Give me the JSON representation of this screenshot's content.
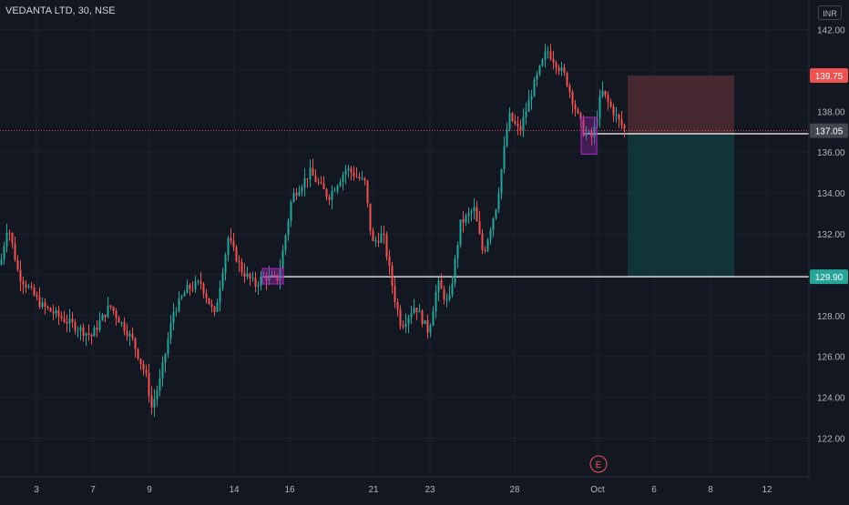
{
  "header": {
    "symbol_title": "VEDANTA LTD, 30, NSE",
    "currency": "INR"
  },
  "colors": {
    "background": "#131722",
    "grid": "#1e222d",
    "up": "#26a69a",
    "down": "#ef5350",
    "axis_text": "#b2b5be",
    "stop_zone": "#4e2a31",
    "target_zone": "#12393a",
    "marker_box": "#9c27b0"
  },
  "chart_data": {
    "type": "candlestick",
    "title": "VEDANTA LTD, 30, NSE",
    "y_axis": {
      "side": "right",
      "min": 121.0,
      "max": 143.0,
      "ticks": [
        122.0,
        124.0,
        126.0,
        128.0,
        130.0,
        132.0,
        134.0,
        136.0,
        138.0,
        140.0,
        142.0
      ],
      "tick_labels": [
        "122.00",
        "124.00",
        "126.00",
        "128.00",
        "130.00",
        "132.00",
        "134.00",
        "136.00",
        "138.00",
        "",
        "142.00"
      ]
    },
    "x_axis": {
      "labels": [
        "3",
        "7",
        "9",
        "14",
        "16",
        "21",
        "23",
        "28",
        "Oct",
        "6",
        "8",
        "12"
      ]
    },
    "grid": true,
    "price_labels": [
      {
        "value": 139.75,
        "text": "139.75",
        "color": "#ef5350"
      },
      {
        "value": 137.05,
        "text": "137.05",
        "color": "#434651"
      },
      {
        "value": 129.9,
        "text": "129.90",
        "color": "#26a69a"
      }
    ],
    "horizontal_lines": [
      129.9,
      136.9
    ],
    "current_price_line": 137.05,
    "position": {
      "entry": 136.9,
      "stop": 139.75,
      "target": 129.9
    },
    "earnings_marker": "E",
    "price_path_key_points": [
      [
        0,
        130.5
      ],
      [
        8,
        132.5
      ],
      [
        20,
        130.0
      ],
      [
        45,
        128.5
      ],
      [
        70,
        127.8
      ],
      [
        100,
        127.0
      ],
      [
        120,
        128.5
      ],
      [
        145,
        126.8
      ],
      [
        160,
        125.0
      ],
      [
        166,
        123.5
      ],
      [
        175,
        124.8
      ],
      [
        190,
        128.2
      ],
      [
        205,
        129.3
      ],
      [
        220,
        129.6
      ],
      [
        235,
        128.0
      ],
      [
        250,
        131.8
      ],
      [
        265,
        130.2
      ],
      [
        280,
        129.5
      ],
      [
        288,
        129.9
      ],
      [
        305,
        129.8
      ],
      [
        320,
        133.8
      ],
      [
        340,
        135.0
      ],
      [
        360,
        133.8
      ],
      [
        380,
        135.2
      ],
      [
        400,
        134.5
      ],
      [
        408,
        131.5
      ],
      [
        420,
        132.0
      ],
      [
        432,
        129.0
      ],
      [
        440,
        127.5
      ],
      [
        455,
        128.5
      ],
      [
        470,
        127.2
      ],
      [
        480,
        129.6
      ],
      [
        492,
        128.5
      ],
      [
        505,
        132.5
      ],
      [
        520,
        133.2
      ],
      [
        530,
        131.0
      ],
      [
        545,
        133.5
      ],
      [
        558,
        137.8
      ],
      [
        570,
        137.0
      ],
      [
        585,
        139.2
      ],
      [
        600,
        141.0
      ],
      [
        620,
        139.7
      ],
      [
        632,
        138.0
      ],
      [
        640,
        137.0
      ],
      [
        650,
        136.7
      ],
      [
        660,
        139.0
      ],
      [
        675,
        137.8
      ],
      [
        686,
        137.05
      ]
    ]
  }
}
